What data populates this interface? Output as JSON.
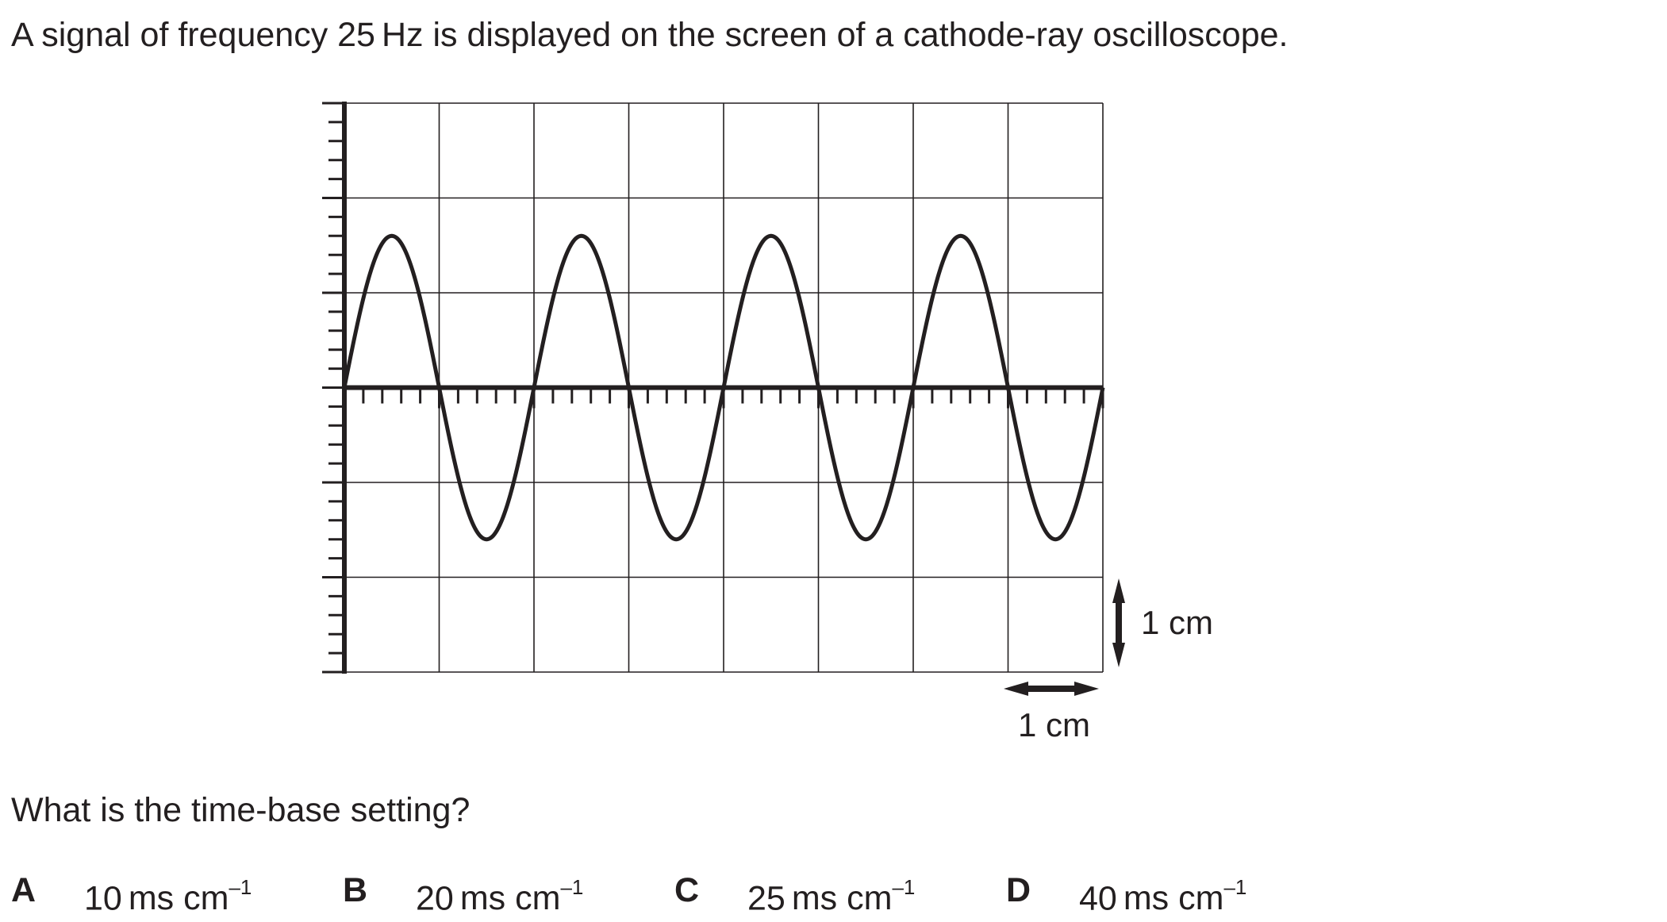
{
  "question": {
    "stem_prefix": "A signal of frequency 25",
    "stem_unit": "Hz",
    "stem_suffix": " is displayed on the screen of a cathode-ray oscilloscope.",
    "prompt": "What is the time-base setting?"
  },
  "figure": {
    "scale_vertical_label": "1 cm",
    "scale_horizontal_label": "1 cm",
    "grid_columns": 8,
    "grid_rows": 6,
    "trace": {
      "cycles_displayed": 4,
      "amplitude_cm": 1.6,
      "width_cm": 8
    }
  },
  "options": [
    {
      "letter": "A",
      "number": "10",
      "unit": "ms cm",
      "exponent": "–1"
    },
    {
      "letter": "B",
      "number": "20",
      "unit": "ms cm",
      "exponent": "–1"
    },
    {
      "letter": "C",
      "number": "25",
      "unit": "ms cm",
      "exponent": "–1"
    },
    {
      "letter": "D",
      "number": "40",
      "unit": "ms cm",
      "exponent": "–1"
    }
  ]
}
